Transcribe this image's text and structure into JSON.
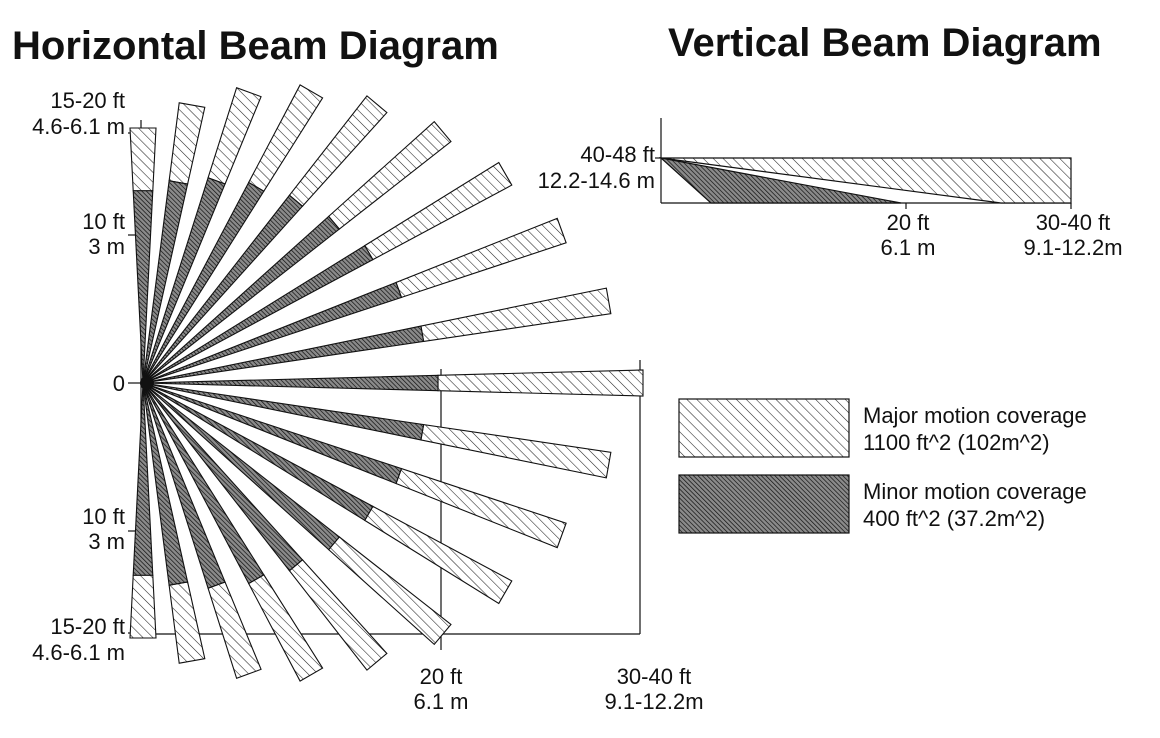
{
  "horizontal_diagram": {
    "title": "Horizontal Beam Diagram",
    "y_labels": {
      "top_far": [
        "15-20 ft",
        "4.6-6.1 m"
      ],
      "top_mid": [
        "10 ft",
        "3 m"
      ],
      "center": "0",
      "bottom_mid": [
        "10 ft",
        "3 m"
      ],
      "bottom_far": [
        "15-20 ft",
        "4.6-6.1 m"
      ]
    },
    "x_labels": {
      "mid": [
        "20 ft",
        "6.1 m"
      ],
      "far": [
        "30-40 ft",
        "9.1-12.2m"
      ]
    },
    "beam_count": 19
  },
  "vertical_diagram": {
    "title": "Vertical Beam Diagram",
    "y_label": [
      "40-48 ft",
      "12.2-14.6 m"
    ],
    "x_labels": {
      "mid": [
        "20 ft",
        "6.1 m"
      ],
      "far": [
        "30-40 ft",
        "9.1-12.2m"
      ]
    }
  },
  "legend": {
    "major": {
      "pattern": "sparse-hatch",
      "lines": [
        "Major motion coverage",
        "1100 ft^2 (102m^2)"
      ]
    },
    "minor": {
      "pattern": "dense-hatch",
      "lines": [
        "Minor motion coverage",
        "400 ft^2 (37.2m^2)"
      ]
    }
  },
  "colors": {
    "ink": "#111111",
    "background": "#ffffff"
  }
}
